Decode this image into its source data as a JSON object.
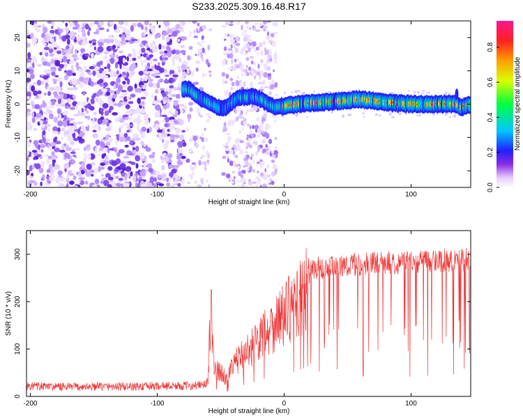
{
  "title": "S233.2025.309.16.48.R17",
  "chart_data": [
    {
      "type": "heatmap",
      "xlabel": "Height of straight line (km)",
      "ylabel": "Frequency (Hz)",
      "xlim": [
        -203,
        147
      ],
      "ylim": [
        -25,
        25
      ],
      "xticks": [
        -200,
        -100,
        0,
        100
      ],
      "yticks": [
        -20,
        -10,
        0,
        10,
        20
      ],
      "xtick_labels": [
        "-200",
        "-100",
        "0",
        "100"
      ],
      "ytick_labels": [
        "-20",
        "-10",
        "0",
        "10",
        "20"
      ],
      "ridge": {
        "x": [
          -80,
          -75,
          -70,
          -65,
          -60,
          -55,
          -50,
          -45,
          -40,
          -35,
          -30,
          -25,
          -20,
          -15,
          -10,
          -5,
          0,
          20,
          40,
          60,
          80,
          100,
          120,
          135,
          140,
          147
        ],
        "y": [
          4.5,
          4.6,
          3,
          1.5,
          0.8,
          -0.5,
          -1.2,
          -1,
          1,
          2,
          2,
          2.4,
          1.8,
          0.5,
          -0.5,
          -1,
          -0.5,
          0.3,
          0.8,
          1.5,
          0.5,
          0,
          0,
          0,
          -1,
          0
        ]
      },
      "colorbar": {
        "label": "Normalized spectral amplitude",
        "range": [
          0,
          0.95
        ],
        "ticks": [
          0.0,
          0.2,
          0.4,
          0.6,
          0.8
        ],
        "tick_labels": [
          "0.0",
          "0.2",
          "0.4",
          "0.6",
          "0.8"
        ]
      }
    },
    {
      "type": "line",
      "xlabel": "Height of straight line (km)",
      "ylabel": "SNR (10 * v/v)",
      "xlim": [
        -203,
        147
      ],
      "ylim": [
        0,
        350
      ],
      "xticks": [
        -200,
        -100,
        0,
        100
      ],
      "yticks": [
        0,
        100,
        200,
        300
      ],
      "xtick_labels": [
        "-200",
        "-100",
        "0",
        "100"
      ],
      "ytick_labels": [
        "0",
        "100",
        "200",
        "300"
      ],
      "color": "#ee3333",
      "series": [
        {
          "name": "SNR",
          "x": [
            -203,
            -180,
            -160,
            -140,
            -120,
            -100,
            -90,
            -80,
            -70,
            -65,
            -60,
            -58,
            -55,
            -50,
            -45,
            -40,
            -35,
            -30,
            -25,
            -20,
            -15,
            -10,
            -5,
            0,
            5,
            10,
            15,
            20,
            25,
            30,
            40,
            50,
            60,
            70,
            80,
            90,
            100,
            110,
            120,
            130,
            140,
            147
          ],
          "y": [
            22,
            20,
            20,
            21,
            20,
            22,
            22,
            22,
            23,
            25,
            30,
            200,
            60,
            55,
            40,
            70,
            90,
            100,
            115,
            130,
            150,
            160,
            175,
            185,
            200,
            215,
            235,
            260,
            270,
            265,
            270,
            275,
            275,
            278,
            280,
            280,
            282,
            283,
            285,
            285,
            285,
            290
          ]
        }
      ]
    }
  ]
}
